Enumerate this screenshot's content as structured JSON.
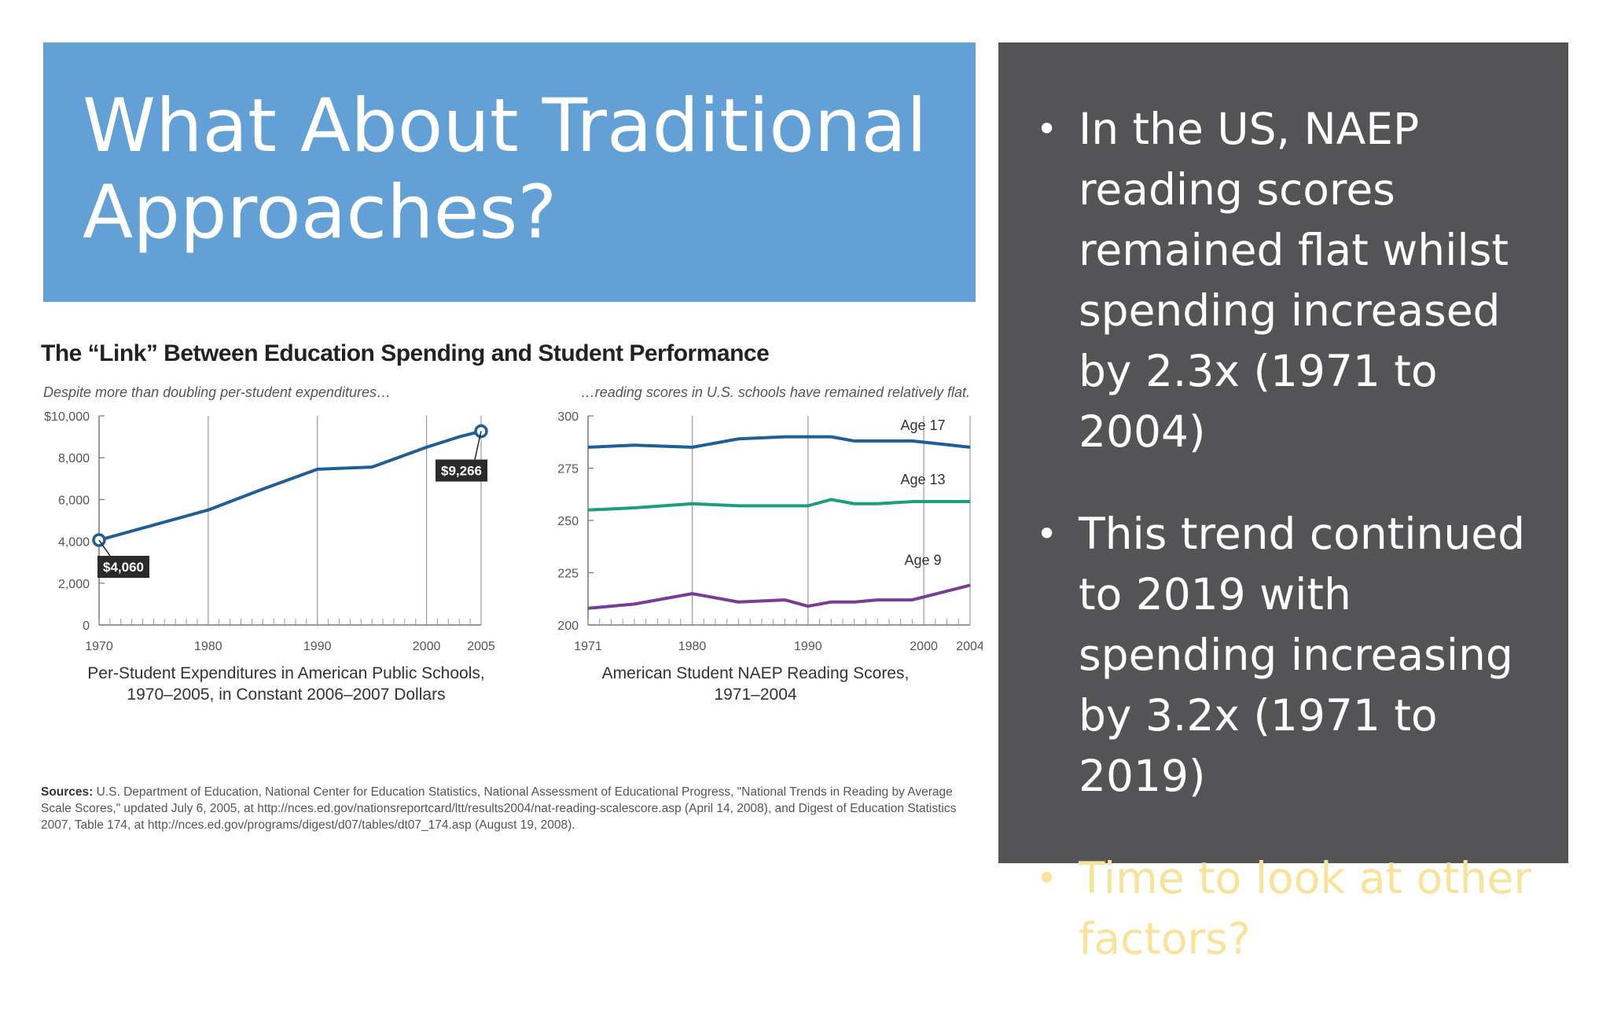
{
  "slide": {
    "title": "What About Traditional\nApproaches?",
    "bullets": [
      {
        "text": "In the US, NAEP reading scores remained flat whilst spending increased by 2.3x (1971 to 2004)",
        "highlight": false
      },
      {
        "text": "This trend continued to 2019 with spending increasing by 3.2x (1971 to 2019)",
        "highlight": false
      },
      {
        "text": "Time to look at other factors?",
        "highlight": true
      }
    ],
    "bullet_glyph": "•",
    "colors": {
      "title_bg": "#62a0d6",
      "side_bg": "#545355",
      "highlight": "#f8e39a"
    }
  },
  "figure": {
    "title": "The “Link” Between Education Spending and Student Performance",
    "sources": {
      "label": "Sources:",
      "text": "U.S. Department of Education, National Center for Education Statistics, National Assessment of Educational Progress, \"National Trends in Reading by Average Scale Scores,\" updated July 6, 2005, at http://nces.ed.gov/nationsreportcard/ltt/results2004/nat-reading-scalescore.asp (April 14, 2008), and Digest of Education Statistics 2007, Table 174, at http://nces.ed.gov/programs/digest/d07/tables/dt07_174.asp (August 19, 2008)."
    }
  },
  "chart_data": [
    {
      "type": "line",
      "subtitle": "Despite more than doubling per-student expenditures…",
      "caption": "Per-Student Expenditures in American Public Schools, 1970–2005, in Constant 2006–2007 Dollars",
      "xlim": [
        1970,
        2005
      ],
      "ylim": [
        0,
        10000
      ],
      "xticks": [
        1970,
        1980,
        1990,
        2000,
        2005
      ],
      "yticks": [
        0,
        2000,
        4000,
        6000,
        8000,
        10000
      ],
      "ytick_labels": [
        "0",
        "2,000",
        "4,000",
        "6,000",
        "8,000",
        "$10,000"
      ],
      "grid_x": [
        1980,
        1990,
        2000,
        2005
      ],
      "color": "#1f5f96",
      "series": [
        {
          "x": [
            1970,
            1980,
            1985,
            1990,
            1995,
            2000,
            2003,
            2005
          ],
          "y": [
            4060,
            5500,
            6500,
            7450,
            7550,
            8500,
            9000,
            9266
          ]
        }
      ],
      "annotations": [
        {
          "x": 1970,
          "y": 4060,
          "label": "$4,060"
        },
        {
          "x": 2005,
          "y": 9266,
          "label": "$9,266"
        }
      ]
    },
    {
      "type": "line",
      "subtitle": "…reading scores in U.S. schools have remained relatively flat.",
      "caption": "American Student NAEP Reading Scores, 1971–2004",
      "xlim": [
        1971,
        2004
      ],
      "ylim": [
        200,
        300
      ],
      "xticks": [
        1971,
        1980,
        1990,
        2000,
        2004
      ],
      "yticks": [
        200,
        225,
        250,
        275,
        300
      ],
      "grid_x": [
        1980,
        1990,
        2000,
        2004
      ],
      "series": [
        {
          "name": "Age 17",
          "color": "#1f5f96",
          "x": [
            1971,
            1975,
            1980,
            1984,
            1988,
            1990,
            1992,
            1994,
            1996,
            1999,
            2004
          ],
          "y": [
            285,
            286,
            285,
            289,
            290,
            290,
            290,
            288,
            288,
            288,
            285
          ]
        },
        {
          "name": "Age 13",
          "color": "#1aa07c",
          "x": [
            1971,
            1975,
            1980,
            1984,
            1988,
            1990,
            1992,
            1994,
            1996,
            1999,
            2004
          ],
          "y": [
            255,
            256,
            258,
            257,
            257,
            257,
            260,
            258,
            258,
            259,
            259
          ]
        },
        {
          "name": "Age 9",
          "color": "#7a3d96",
          "x": [
            1971,
            1975,
            1980,
            1984,
            1988,
            1990,
            1992,
            1994,
            1996,
            1999,
            2004
          ],
          "y": [
            208,
            210,
            215,
            211,
            212,
            209,
            211,
            211,
            212,
            212,
            219
          ]
        }
      ]
    }
  ]
}
